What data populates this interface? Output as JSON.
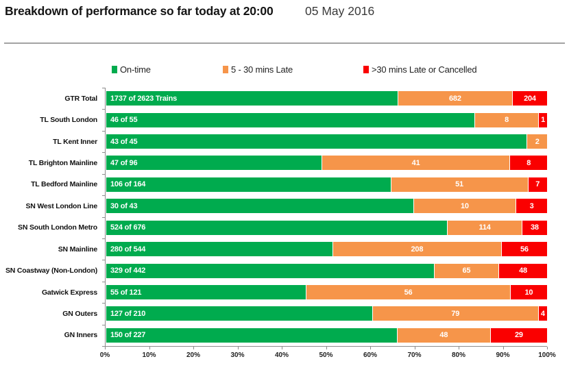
{
  "header": {
    "title": "Breakdown of performance so far today at 20:00",
    "date": "05 May 2016"
  },
  "legend": [
    {
      "label": "On-time",
      "color": "#00AB4E",
      "icon": "green-square-icon"
    },
    {
      "label": "5 - 30 mins Late",
      "color": "#F6954A",
      "icon": "orange-square-icon"
    },
    {
      "label": ">30 mins Late or Cancelled",
      "color": "#FA0000",
      "icon": "red-square-icon"
    }
  ],
  "chart_data": {
    "type": "bar",
    "orientation": "horizontal",
    "stacked": true,
    "title": "Breakdown of performance so far today at 20:00",
    "subtitle": "05 May 2016",
    "categories": [
      "GTR Total",
      "TL South London",
      "TL Kent Inner",
      "TL Brighton Mainline",
      "TL Bedford Mainline",
      "SN West London Line",
      "SN South London Metro",
      "SN Mainline",
      "SN Coastway (Non-London)",
      "Gatwick Express",
      "GN Outers",
      "GN Inners"
    ],
    "totals": [
      2623,
      55,
      45,
      96,
      164,
      43,
      676,
      544,
      442,
      121,
      210,
      227
    ],
    "series": [
      {
        "name": "On-time",
        "color": "#00AB4E",
        "values": [
          1737,
          46,
          43,
          47,
          106,
          30,
          524,
          280,
          329,
          55,
          127,
          150
        ],
        "labels": [
          "1737 of 2623 Trains",
          "46 of 55",
          "43 of 45",
          "47 of 96",
          "106 of 164",
          "30 of 43",
          "524 of 676",
          "280 of 544",
          "329 of 442",
          "55 of 121",
          "127 of 210",
          "150 of 227"
        ]
      },
      {
        "name": "5 - 30 mins Late",
        "color": "#F6954A",
        "values": [
          682,
          8,
          2,
          41,
          51,
          10,
          114,
          208,
          65,
          56,
          79,
          48
        ]
      },
      {
        "name": ">30 mins Late or Cancelled",
        "color": "#FA0000",
        "values": [
          204,
          1,
          0,
          8,
          7,
          3,
          38,
          56,
          48,
          10,
          4,
          29
        ]
      }
    ],
    "x_axis": {
      "min": 0,
      "max": 100,
      "unit": "percent",
      "ticks": [
        "0%",
        "10%",
        "20%",
        "30%",
        "40%",
        "50%",
        "60%",
        "70%",
        "80%",
        "90%",
        "100%"
      ]
    },
    "grid": false,
    "legend_position": "top"
  }
}
